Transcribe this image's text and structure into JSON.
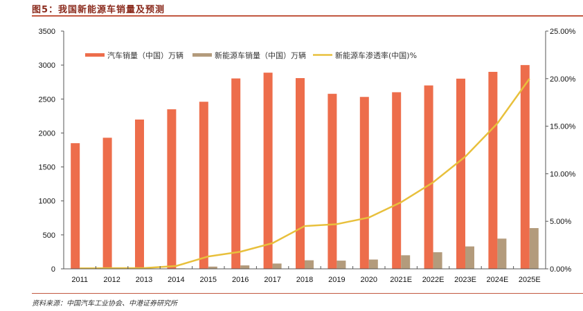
{
  "title": "图5：我国新能源车销量及预测",
  "source": "资料来源：中国汽车工业协会、中港证券研究所",
  "colors": {
    "car_sales": "#ed6d4b",
    "nev_sales": "#b39b7c",
    "penetration": "#e8c03c",
    "title": "#8a2a1c",
    "rule": "#c2573f"
  },
  "chart_data": {
    "type": "bar",
    "title": "我国新能源车销量及预测",
    "xlabel": "",
    "ylabel": "",
    "categories": [
      "2011",
      "2012",
      "2013",
      "2014",
      "2015",
      "2016",
      "2017",
      "2018",
      "2019",
      "2020",
      "2021E",
      "2022E",
      "2023E",
      "2024E",
      "2025E"
    ],
    "series": [
      {
        "name": "汽车销量（中国）万辆",
        "type": "bar",
        "axis": "left",
        "values": [
          1850,
          1930,
          2198,
          2349,
          2460,
          2803,
          2888,
          2808,
          2577,
          2531,
          2600,
          2700,
          2800,
          2900,
          3000
        ]
      },
      {
        "name": "新能源车销量（中国）万辆",
        "type": "bar",
        "axis": "left",
        "values": [
          1,
          1,
          2,
          7,
          33,
          51,
          78,
          126,
          121,
          137,
          200,
          245,
          330,
          445,
          600
        ]
      },
      {
        "name": "新能源车渗透率(中国)%",
        "type": "line",
        "axis": "right",
        "values": [
          0.05,
          0.07,
          0.08,
          0.3,
          1.3,
          1.8,
          2.7,
          4.5,
          4.7,
          5.4,
          7.0,
          9.1,
          11.8,
          15.3,
          20.0
        ]
      }
    ],
    "ylim": [
      0,
      3500
    ],
    "y_ticks": [
      "0",
      "500",
      "1000",
      "1500",
      "2000",
      "2500",
      "3000",
      "3500"
    ],
    "y2lim": [
      0,
      25
    ],
    "y2_ticks": [
      "0.00%",
      "5.00%",
      "10.00%",
      "15.00%",
      "20.00%",
      "25.00%"
    ],
    "grid": false,
    "legend_position": "top"
  }
}
